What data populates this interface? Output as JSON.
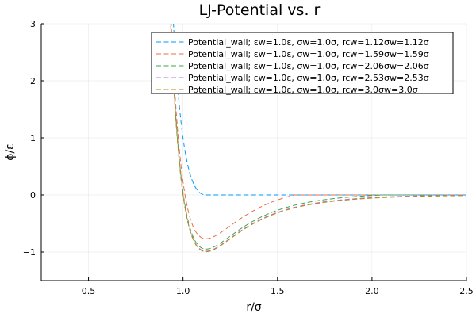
{
  "chart_data": {
    "type": "line",
    "title": "LJ-Potential vs. r",
    "xlabel": "r/σ",
    "ylabel": "ϕ/ε",
    "xlim": [
      0.25,
      2.5
    ],
    "ylim": [
      -1.5,
      3
    ],
    "xticks": [
      0.5,
      1.0,
      1.5,
      2.0,
      2.5
    ],
    "xtick_labels": [
      "0.5",
      "1.0",
      "1.5",
      "2.0",
      "2.5"
    ],
    "yticks": [
      -1,
      0,
      1,
      2,
      3
    ],
    "ytick_labels": [
      "−1",
      "0",
      "1",
      "2",
      "3"
    ],
    "grid": true,
    "legend_position": "top-right",
    "line_style": "dashed",
    "series": [
      {
        "name": "Potential_wall; εw=1.0ε, σw=1.0σ, rcw=1.12σw=1.12σ",
        "epsilon": 1.0,
        "sigma": 1.0,
        "rc": 1.12,
        "color": "#009AFA"
      },
      {
        "name": "Potential_wall; εw=1.0ε, σw=1.0σ, rcw=1.59σw=1.59σ",
        "epsilon": 1.0,
        "sigma": 1.0,
        "rc": 1.59,
        "color": "#E36F47"
      },
      {
        "name": "Potential_wall; εw=1.0ε, σw=1.0σ, rcw=2.06σw=2.06σ",
        "epsilon": 1.0,
        "sigma": 1.0,
        "rc": 2.06,
        "color": "#3EA44E"
      },
      {
        "name": "Potential_wall; εw=1.0ε, σw=1.0σ, rcw=2.53σw=2.53σ",
        "epsilon": 1.0,
        "sigma": 1.0,
        "rc": 2.53,
        "color": "#C372CC"
      },
      {
        "name": "Potential_wall; εw=1.0ε, σw=1.0σ, rcw=3.0σw=3.0σ",
        "epsilon": 1.0,
        "sigma": 1.0,
        "rc": 3.0,
        "color": "#AC8E18"
      }
    ]
  }
}
